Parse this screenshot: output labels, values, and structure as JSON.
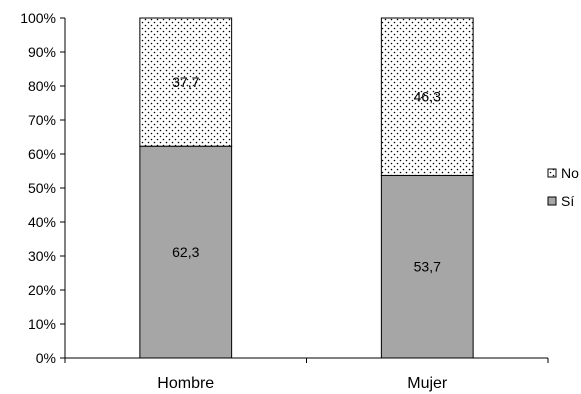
{
  "chart_data": {
    "type": "bar",
    "stacked": true,
    "percent_stacked": true,
    "categories": [
      "Hombre",
      "Mujer"
    ],
    "series": [
      {
        "name": "Sí",
        "values": [
          62.3,
          53.7
        ],
        "labels": [
          "62,3",
          "53,7"
        ],
        "color": "#a6a6a6",
        "pattern": "solid"
      },
      {
        "name": "No",
        "values": [
          37.7,
          46.3
        ],
        "labels": [
          "37,7",
          "46,3"
        ],
        "color": "#ffffff",
        "pattern": "dots"
      }
    ],
    "y_ticks": [
      "0%",
      "10%",
      "20%",
      "30%",
      "40%",
      "50%",
      "60%",
      "70%",
      "80%",
      "90%",
      "100%"
    ],
    "ylim": [
      0,
      100
    ],
    "grid": false,
    "legend_position": "right",
    "legend_order": [
      "No",
      "Sí"
    ]
  }
}
